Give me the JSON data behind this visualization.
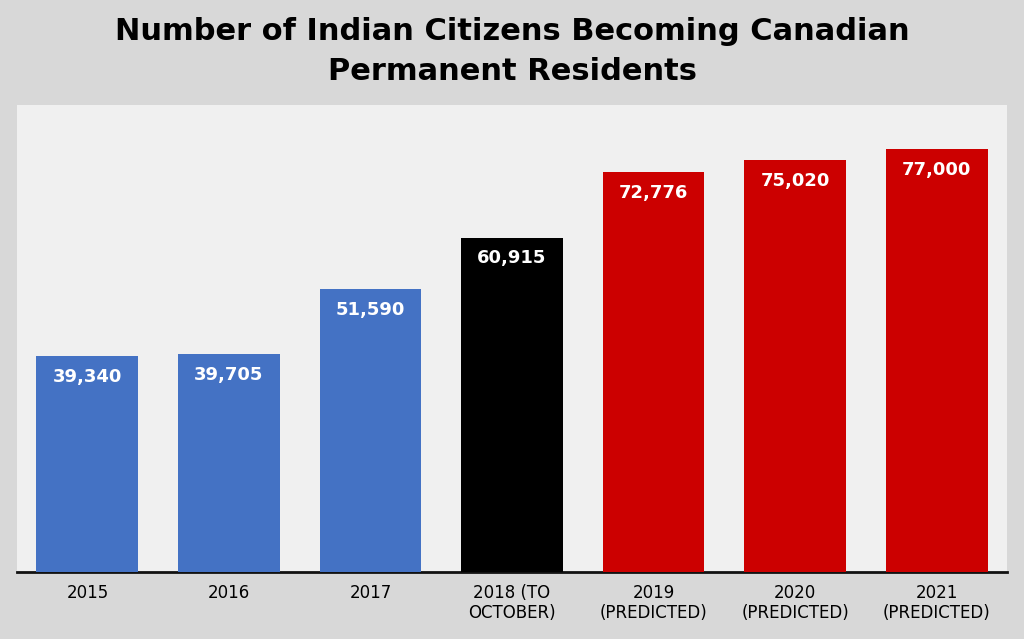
{
  "title": "Number of Indian Citizens Becoming Canadian\nPermanent Residents",
  "categories": [
    "2015",
    "2016",
    "2017",
    "2018 (TO\nOCTOBER)",
    "2019\n(PREDICTED)",
    "2020\n(PREDICTED)",
    "2021\n(PREDICTED)"
  ],
  "values": [
    39340,
    39705,
    51590,
    60915,
    72776,
    75020,
    77000
  ],
  "bar_colors": [
    "#4472C4",
    "#4472C4",
    "#4472C4",
    "#000000",
    "#CC0000",
    "#CC0000",
    "#CC0000"
  ],
  "label_colors": [
    "#FFFFFF",
    "#FFFFFF",
    "#FFFFFF",
    "#FFFFFF",
    "#FFFFFF",
    "#FFFFFF",
    "#FFFFFF"
  ],
  "labels": [
    "39,340",
    "39,705",
    "51,590",
    "60,915",
    "72,776",
    "75,020",
    "77,000"
  ],
  "fig_bg_top": "#E8E8E8",
  "fig_bg_bottom": "#C8C8C8",
  "plot_bg": "#F0F0F0",
  "title_fontsize": 22,
  "title_fontweight": "bold",
  "ylim": [
    0,
    85000
  ],
  "grid_color": "#FFFFFF",
  "bar_width": 0.72,
  "label_fontsize": 13
}
